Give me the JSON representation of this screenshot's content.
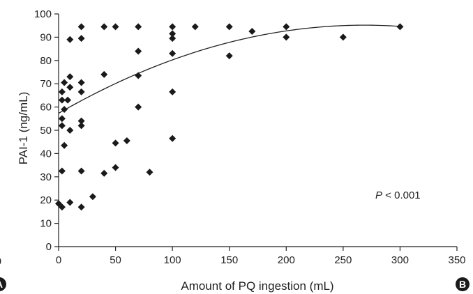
{
  "chart_data": {
    "type": "scatter",
    "xlabel": "Amount of PQ ingestion (mL)",
    "ylabel": "PAI-1 (ng/mL)",
    "xlim": [
      0,
      350
    ],
    "ylim": [
      0,
      100
    ],
    "x_ticks": [
      "0",
      "50",
      "100",
      "150",
      "200",
      "250",
      "300",
      "350"
    ],
    "y_ticks": [
      "0",
      "10",
      "20",
      "30",
      "40",
      "50",
      "60",
      "70",
      "80",
      "90",
      "100"
    ],
    "grid": false,
    "annotation": {
      "italic": "P",
      "rest": " < 0.001"
    },
    "points": [
      [
        0,
        18.5
      ],
      [
        3,
        17
      ],
      [
        3,
        32.5
      ],
      [
        3,
        52
      ],
      [
        3,
        55
      ],
      [
        3,
        63
      ],
      [
        3,
        66.5
      ],
      [
        5,
        59
      ],
      [
        5,
        70.5
      ],
      [
        5,
        43.5
      ],
      [
        8,
        63
      ],
      [
        10,
        19
      ],
      [
        10,
        50
      ],
      [
        10,
        68.5
      ],
      [
        10,
        73
      ],
      [
        10,
        89
      ],
      [
        20,
        17
      ],
      [
        20,
        32.5
      ],
      [
        20,
        52
      ],
      [
        20,
        54
      ],
      [
        20,
        66.5
      ],
      [
        20,
        70.5
      ],
      [
        20,
        89.5
      ],
      [
        20,
        94.5
      ],
      [
        30,
        21.5
      ],
      [
        40,
        31.5
      ],
      [
        40,
        74
      ],
      [
        40,
        94.5
      ],
      [
        50,
        34
      ],
      [
        50,
        44.5
      ],
      [
        50,
        94.5
      ],
      [
        60,
        45.5
      ],
      [
        70,
        60
      ],
      [
        70,
        73.5
      ],
      [
        70,
        84
      ],
      [
        70,
        94.5
      ],
      [
        80,
        32
      ],
      [
        100,
        46.5
      ],
      [
        100,
        66.5
      ],
      [
        100,
        83
      ],
      [
        100,
        89.5
      ],
      [
        100,
        91.5
      ],
      [
        100,
        94.5
      ],
      [
        120,
        94.5
      ],
      [
        150,
        82
      ],
      [
        150,
        94.5
      ],
      [
        170,
        92.5
      ],
      [
        200,
        90
      ],
      [
        200,
        94.5
      ],
      [
        250,
        90
      ],
      [
        300,
        94.5
      ]
    ],
    "trendline": {
      "type": "quadratic",
      "x_range": [
        0,
        300
      ],
      "coefficients": [
        57.3,
        0.282,
        -0.000525
      ]
    },
    "marker_color": "#1a1a1a"
  },
  "badges": {
    "left": "A",
    "right": "B"
  },
  "left_edge_tick": "0"
}
